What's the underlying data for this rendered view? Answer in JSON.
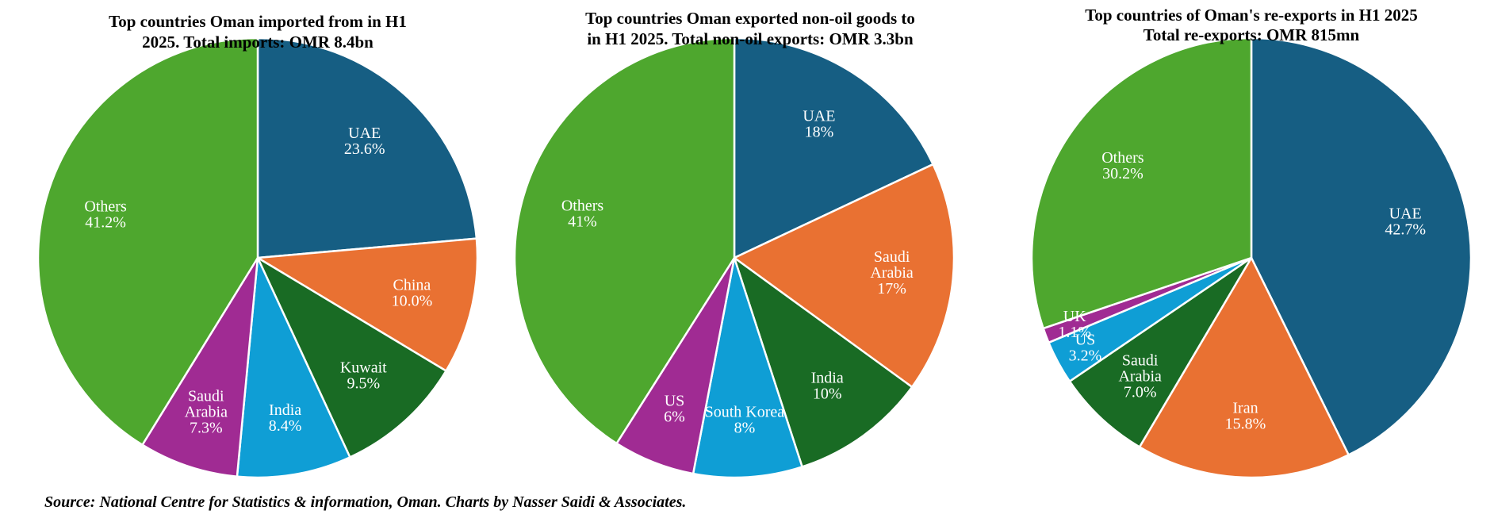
{
  "colors": {
    "uae": "#165E83",
    "china": "#E97132",
    "orange": "#E97132",
    "kuwait": "#196B24",
    "dark_green": "#196B24",
    "india_light": "#0F9ED5",
    "light_blue": "#0F9ED5",
    "purple": "#A02B93",
    "others": "#4EA72E"
  },
  "source": "Source: National Centre for Statistics & information, Oman. Charts by Nasser Saidi & Associates.",
  "chart_data": [
    {
      "type": "pie",
      "title": [
        "Top countries Oman imported from in H1",
        "2025. Total imports: OMR 8.4bn"
      ],
      "slices": [
        {
          "label": [
            "UAE"
          ],
          "pct_label": "23.6%",
          "value": 23.6,
          "color": "#165E83"
        },
        {
          "label": [
            "China"
          ],
          "pct_label": "10.0%",
          "value": 10.0,
          "color": "#E97132"
        },
        {
          "label": [
            "Kuwait"
          ],
          "pct_label": "9.5%",
          "value": 9.5,
          "color": "#196B24"
        },
        {
          "label": [
            "India"
          ],
          "pct_label": "8.4%",
          "value": 8.4,
          "color": "#0F9ED5"
        },
        {
          "label": [
            "Saudi",
            "Arabia"
          ],
          "pct_label": "7.3%",
          "value": 7.3,
          "color": "#A02B93"
        },
        {
          "label": [
            "Others"
          ],
          "pct_label": "41.2%",
          "value": 41.2,
          "color": "#4EA72E"
        }
      ]
    },
    {
      "type": "pie",
      "title": [
        "Top countries Oman exported non-oil goods to",
        "in H1 2025. Total non-oil exports: OMR 3.3bn"
      ],
      "slices": [
        {
          "label": [
            "UAE"
          ],
          "pct_label": "18%",
          "value": 18,
          "color": "#165E83"
        },
        {
          "label": [
            "Saudi",
            "Arabia"
          ],
          "pct_label": "17%",
          "value": 17,
          "color": "#E97132"
        },
        {
          "label": [
            "India"
          ],
          "pct_label": "10%",
          "value": 10,
          "color": "#196B24"
        },
        {
          "label": [
            "South Korea"
          ],
          "pct_label": "8%",
          "value": 8,
          "color": "#0F9ED5"
        },
        {
          "label": [
            "US"
          ],
          "pct_label": "6%",
          "value": 6,
          "color": "#A02B93"
        },
        {
          "label": [
            "Others"
          ],
          "pct_label": "41%",
          "value": 41,
          "color": "#4EA72E"
        }
      ]
    },
    {
      "type": "pie",
      "title": [
        "Top countries of Oman's re-exports in H1 2025",
        "Total re-exports: OMR 815mn"
      ],
      "slices": [
        {
          "label": [
            "UAE"
          ],
          "pct_label": "42.7%",
          "value": 42.7,
          "color": "#165E83"
        },
        {
          "label": [
            "Iran"
          ],
          "pct_label": "15.8%",
          "value": 15.8,
          "color": "#E97132"
        },
        {
          "label": [
            "Saudi",
            "Arabia"
          ],
          "pct_label": "7.0%",
          "value": 7.0,
          "color": "#196B24"
        },
        {
          "label": [
            "US"
          ],
          "pct_label": "3.2%",
          "value": 3.2,
          "color": "#0F9ED5"
        },
        {
          "label": [
            "UK"
          ],
          "pct_label": "1.1%",
          "value": 1.1,
          "color": "#A02B93"
        },
        {
          "label": [
            "Others"
          ],
          "pct_label": "30.2%",
          "value": 30.2,
          "color": "#4EA72E"
        }
      ]
    }
  ]
}
